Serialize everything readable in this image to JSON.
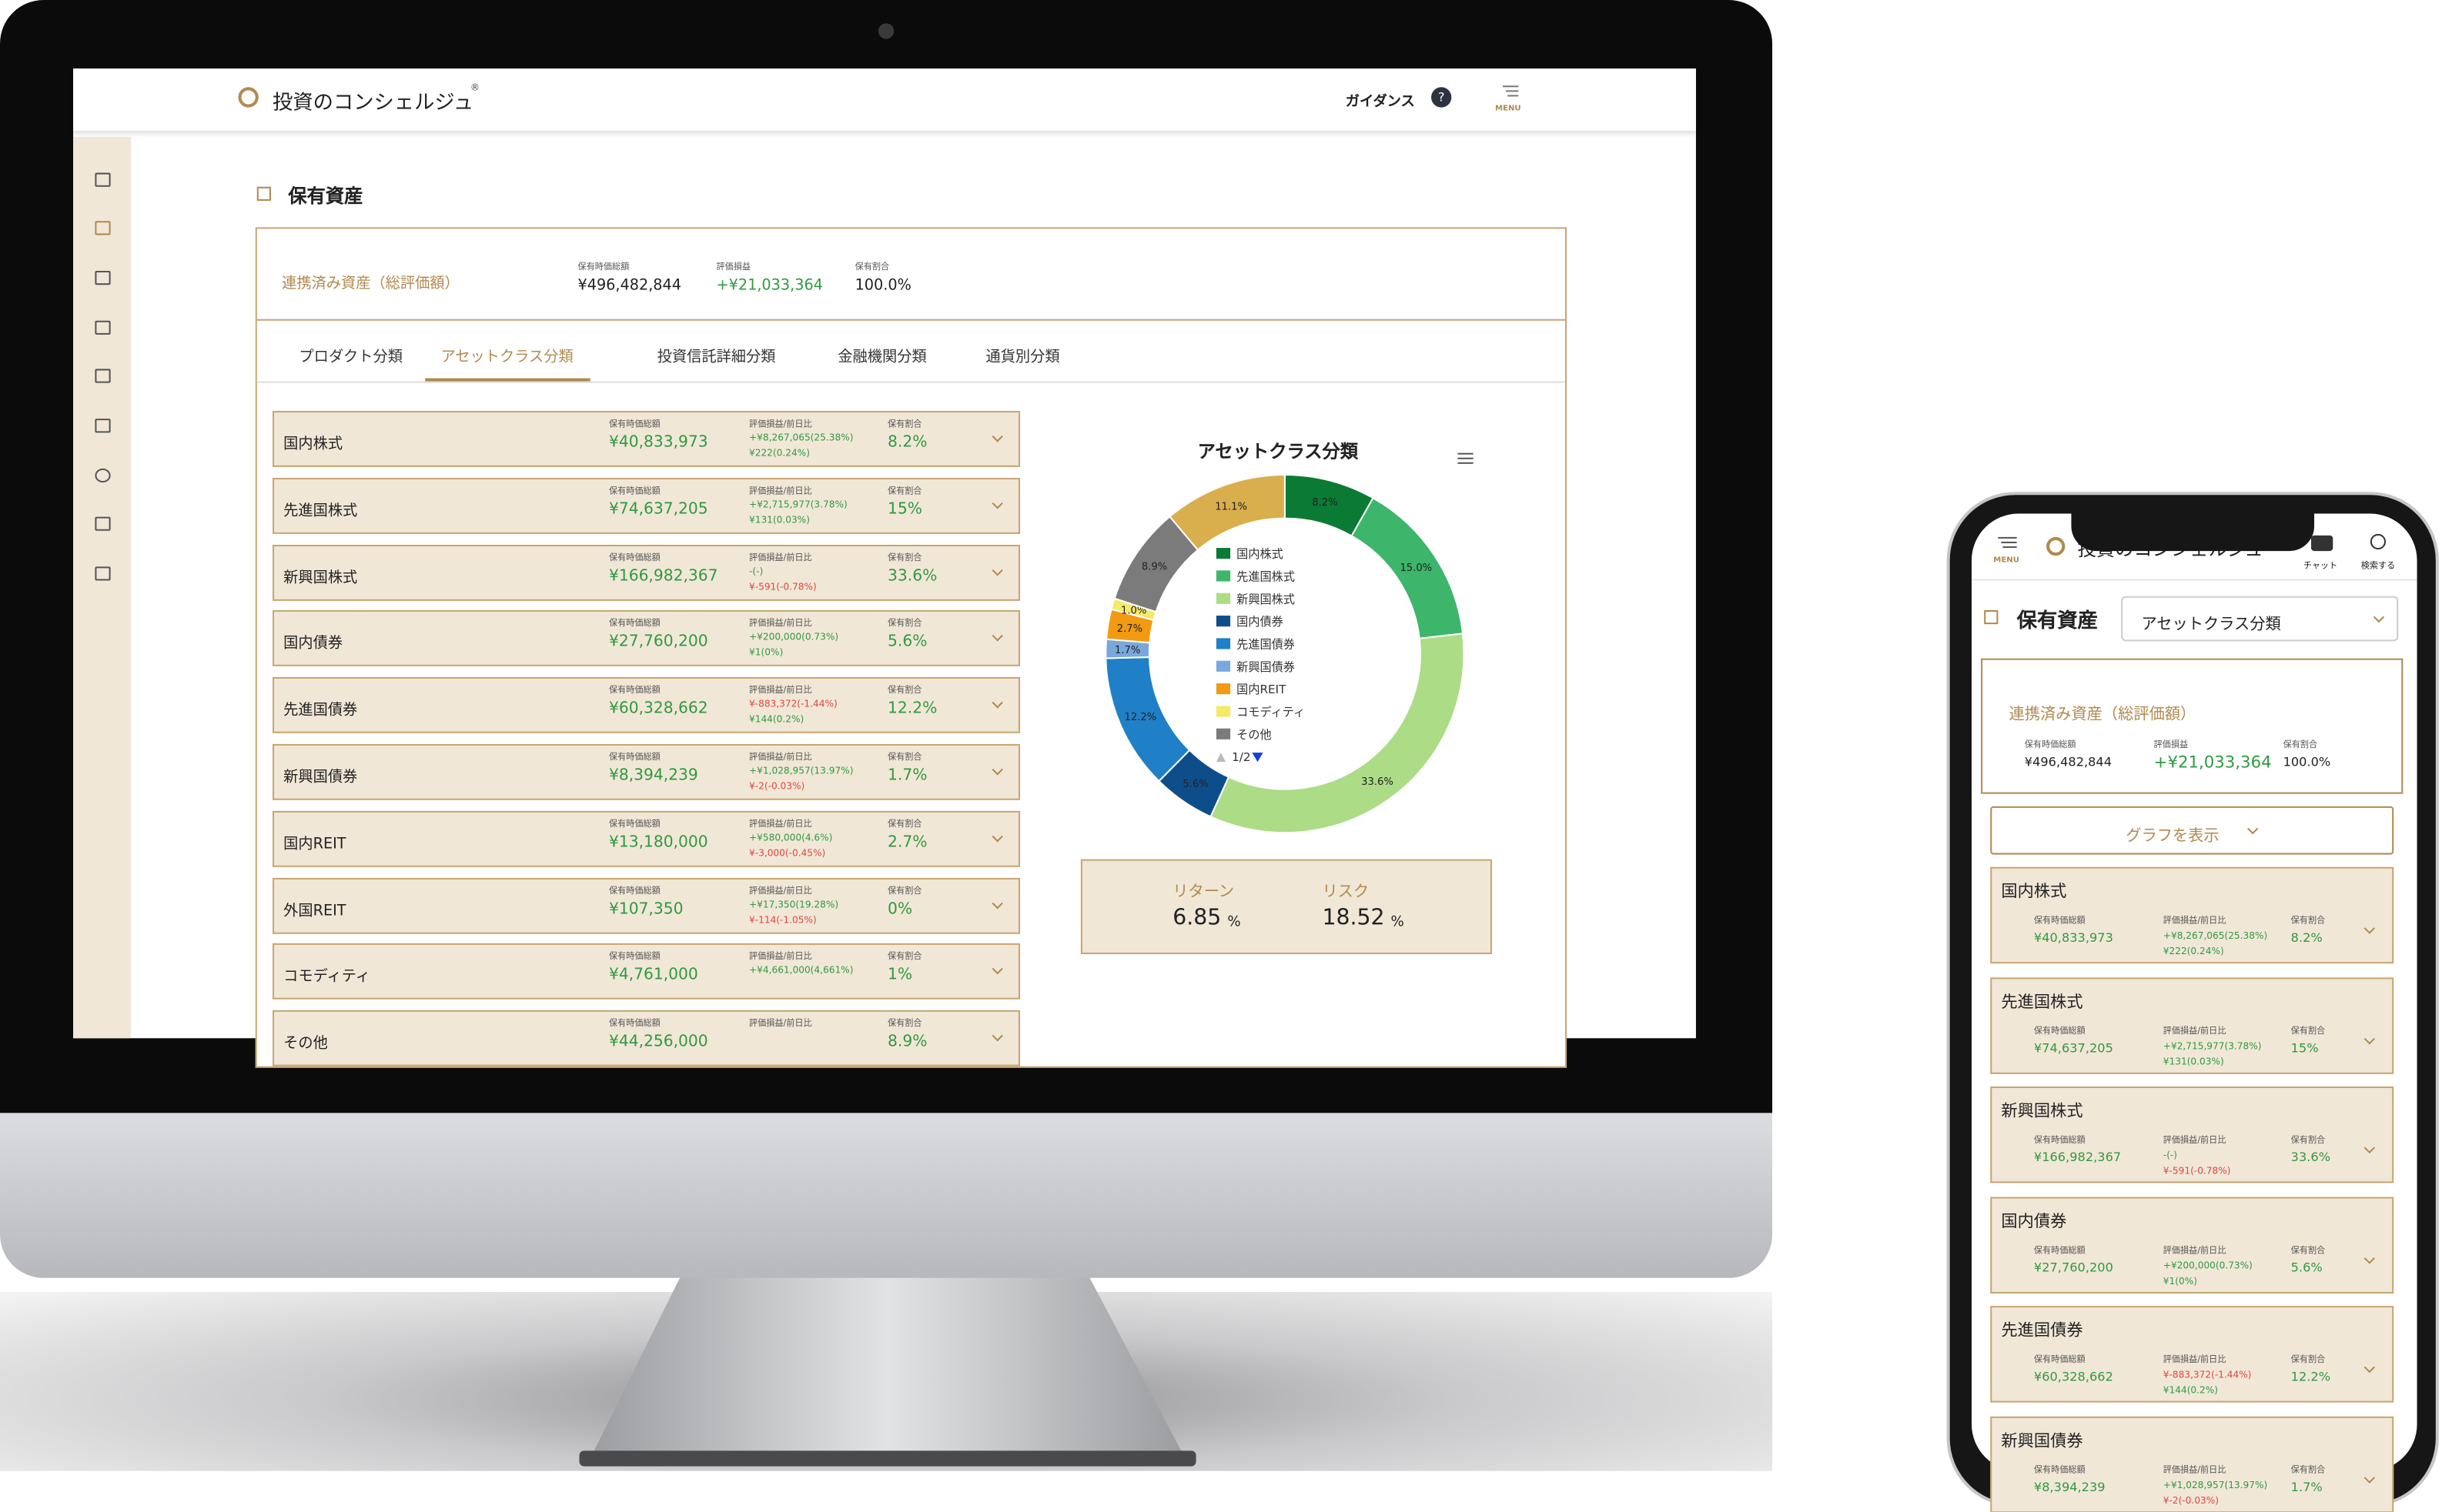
{
  "header": {
    "logo": "投資のコンシェルジュ",
    "logo_mark": "®",
    "guidance": "ガイダンス",
    "help": "?",
    "menu": "MENU"
  },
  "page_title": "保有資産",
  "summary": {
    "label": "連携済み資産（総評価額）",
    "fields": [
      {
        "label": "保有時価総額",
        "value": "¥496,482,844"
      },
      {
        "label": "評価損益",
        "value": "+¥21,033,364"
      },
      {
        "label": "保有割合",
        "value": "100.0%"
      }
    ]
  },
  "tabs": {
    "items": [
      "プロダクト分類",
      "アセットクラス分類",
      "投資信託詳細分類",
      "金融機関分類",
      "通貨別分類"
    ],
    "active": 1
  },
  "row_labels": [
    "保有時価総額",
    "評価損益/前日比",
    "保有割合"
  ],
  "rows": [
    {
      "name": "国内株式",
      "market_value": "¥40,833,973",
      "pl": "+¥8,267,065(25.38%)",
      "daily": "¥222(0.24%)",
      "share": "8.2%"
    },
    {
      "name": "先進国株式",
      "market_value": "¥74,637,205",
      "pl": "+¥2,715,977(3.78%)",
      "daily": "¥131(0.03%)",
      "share": "15%"
    },
    {
      "name": "新興国株式",
      "market_value": "¥166,982,367",
      "pl": "-(-)",
      "daily": "¥-591(-0.78%)",
      "share": "33.6%"
    },
    {
      "name": "国内債券",
      "market_value": "¥27,760,200",
      "pl": "+¥200,000(0.73%)",
      "daily": "¥1(0%)",
      "share": "5.6%"
    },
    {
      "name": "先進国債券",
      "market_value": "¥60,328,662",
      "pl": "¥-883,372(-1.44%)",
      "daily": "¥144(0.2%)",
      "share": "12.2%"
    },
    {
      "name": "新興国債券",
      "market_value": "¥8,394,239",
      "pl": "+¥1,028,957(13.97%)",
      "daily": "¥-2(-0.03%)",
      "share": "1.7%"
    },
    {
      "name": "国内REIT",
      "market_value": "¥13,180,000",
      "pl": "+¥580,000(4.6%)",
      "daily": "¥-3,000(-0.45%)",
      "share": "2.7%"
    },
    {
      "name": "外国REIT",
      "market_value": "¥107,350",
      "pl": "+¥17,350(19.28%)",
      "daily": "¥-114(-1.05%)",
      "share": "0%"
    },
    {
      "name": "コモディティ",
      "market_value": "¥4,761,000",
      "pl": "+¥4,661,000(4,661%)",
      "share": "1%"
    },
    {
      "name": "その他",
      "market_value": "¥44,256,000",
      "share": "8.9%"
    }
  ],
  "chart_data": {
    "type": "pie",
    "title": "アセットクラス分類",
    "categories": [
      "国内株式",
      "先進国株式",
      "新興国株式",
      "国内債券",
      "先進国債券",
      "新興国債券",
      "国内REIT",
      "コモディティ",
      "その他",
      null
    ],
    "values": [
      8.2,
      15.0,
      33.6,
      5.6,
      12.2,
      1.7,
      2.7,
      1.0,
      8.9,
      11.1
    ],
    "value_labels": [
      "8.2%",
      "15.0%",
      "33.6%",
      "5.6%",
      "12.2%",
      "1.7%",
      "2.7%",
      "1.0%",
      "8.9%",
      "11.1%"
    ],
    "colors": [
      "#0b7a34",
      "#3db56b",
      "#acdc86",
      "#0d4e8a",
      "#1f80c8",
      "#7aa8dd",
      "#f29a12",
      "#f6e96a",
      "#7b7b7b",
      "#d9ae4d"
    ],
    "legend_page": "1/2"
  },
  "metrics": [
    {
      "label": "リターン",
      "value": "6.85",
      "unit": "%"
    },
    {
      "label": "リスク",
      "value": "18.52",
      "unit": "%"
    }
  ],
  "phone": {
    "chat": "チャット",
    "search": "検索する",
    "show_graph": "グラフを表示"
  }
}
